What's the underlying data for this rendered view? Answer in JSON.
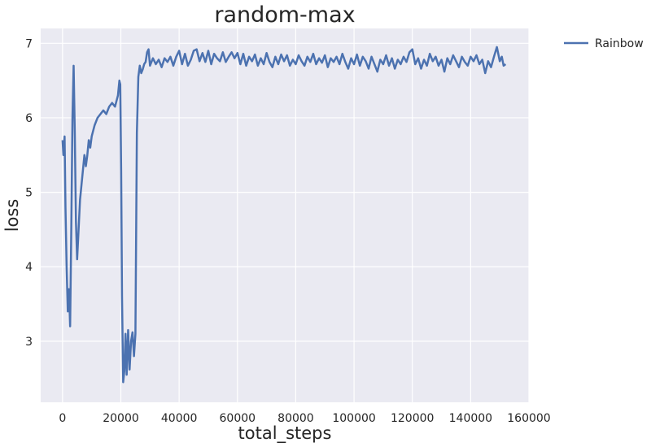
{
  "chart_data": {
    "type": "line",
    "title": "random-max",
    "xlabel": "total_steps",
    "ylabel": "loss",
    "xlim": [
      -7500,
      160000
    ],
    "ylim": [
      2.18,
      7.2
    ],
    "xticks": [
      0,
      20000,
      40000,
      60000,
      80000,
      100000,
      120000,
      140000,
      160000
    ],
    "yticks": [
      3,
      4,
      5,
      6,
      7
    ],
    "grid": true,
    "background": "#EAEAF2",
    "legend_position": "outside-top-right",
    "series": [
      {
        "name": "Rainbow",
        "color": "#4C72B0",
        "points": [
          [
            0,
            5.7
          ],
          [
            300,
            5.5
          ],
          [
            700,
            5.75
          ],
          [
            1000,
            4.8
          ],
          [
            1400,
            4.0
          ],
          [
            1800,
            3.4
          ],
          [
            2200,
            3.7
          ],
          [
            2600,
            3.2
          ],
          [
            3000,
            4.5
          ],
          [
            3400,
            6.0
          ],
          [
            3800,
            6.7
          ],
          [
            4200,
            5.8
          ],
          [
            4600,
            4.6
          ],
          [
            5000,
            4.1
          ],
          [
            5500,
            4.5
          ],
          [
            6000,
            4.9
          ],
          [
            6500,
            5.1
          ],
          [
            7000,
            5.3
          ],
          [
            7500,
            5.5
          ],
          [
            8000,
            5.35
          ],
          [
            8500,
            5.5
          ],
          [
            9000,
            5.7
          ],
          [
            9500,
            5.6
          ],
          [
            10000,
            5.75
          ],
          [
            11000,
            5.9
          ],
          [
            12000,
            6.0
          ],
          [
            13000,
            6.05
          ],
          [
            14000,
            6.1
          ],
          [
            15000,
            6.05
          ],
          [
            16000,
            6.15
          ],
          [
            17000,
            6.2
          ],
          [
            18000,
            6.15
          ],
          [
            19000,
            6.3
          ],
          [
            19500,
            6.5
          ],
          [
            19800,
            6.45
          ],
          [
            20100,
            5.3
          ],
          [
            20400,
            3.6
          ],
          [
            20800,
            2.45
          ],
          [
            21200,
            2.6
          ],
          [
            21600,
            3.1
          ],
          [
            22000,
            2.55
          ],
          [
            22500,
            3.15
          ],
          [
            23000,
            2.62
          ],
          [
            23500,
            3.0
          ],
          [
            24000,
            3.12
          ],
          [
            24500,
            2.8
          ],
          [
            25000,
            3.1
          ],
          [
            25500,
            5.8
          ],
          [
            26000,
            6.55
          ],
          [
            26500,
            6.7
          ],
          [
            27000,
            6.6
          ],
          [
            27500,
            6.65
          ],
          [
            28000,
            6.72
          ],
          [
            28500,
            6.75
          ],
          [
            29000,
            6.88
          ],
          [
            29500,
            6.92
          ],
          [
            30000,
            6.7
          ],
          [
            31000,
            6.8
          ],
          [
            32000,
            6.72
          ],
          [
            33000,
            6.78
          ],
          [
            34000,
            6.68
          ],
          [
            35000,
            6.8
          ],
          [
            36000,
            6.75
          ],
          [
            37000,
            6.82
          ],
          [
            38000,
            6.7
          ],
          [
            39000,
            6.82
          ],
          [
            40000,
            6.9
          ],
          [
            41000,
            6.72
          ],
          [
            42000,
            6.86
          ],
          [
            43000,
            6.7
          ],
          [
            44000,
            6.78
          ],
          [
            45000,
            6.9
          ],
          [
            46000,
            6.92
          ],
          [
            47000,
            6.76
          ],
          [
            48000,
            6.87
          ],
          [
            49000,
            6.75
          ],
          [
            50000,
            6.9
          ],
          [
            51000,
            6.72
          ],
          [
            52000,
            6.86
          ],
          [
            53000,
            6.8
          ],
          [
            54000,
            6.76
          ],
          [
            55000,
            6.88
          ],
          [
            56000,
            6.75
          ],
          [
            57000,
            6.82
          ],
          [
            58000,
            6.88
          ],
          [
            59000,
            6.8
          ],
          [
            60000,
            6.87
          ],
          [
            61000,
            6.72
          ],
          [
            62000,
            6.86
          ],
          [
            63000,
            6.7
          ],
          [
            64000,
            6.82
          ],
          [
            65000,
            6.76
          ],
          [
            66000,
            6.85
          ],
          [
            67000,
            6.7
          ],
          [
            68000,
            6.8
          ],
          [
            69000,
            6.72
          ],
          [
            70000,
            6.87
          ],
          [
            71000,
            6.75
          ],
          [
            72000,
            6.68
          ],
          [
            73000,
            6.82
          ],
          [
            74000,
            6.72
          ],
          [
            75000,
            6.85
          ],
          [
            76000,
            6.76
          ],
          [
            77000,
            6.84
          ],
          [
            78000,
            6.7
          ],
          [
            79000,
            6.78
          ],
          [
            80000,
            6.72
          ],
          [
            81000,
            6.84
          ],
          [
            82000,
            6.76
          ],
          [
            83000,
            6.7
          ],
          [
            84000,
            6.82
          ],
          [
            85000,
            6.75
          ],
          [
            86000,
            6.86
          ],
          [
            87000,
            6.72
          ],
          [
            88000,
            6.8
          ],
          [
            89000,
            6.74
          ],
          [
            90000,
            6.84
          ],
          [
            91000,
            6.68
          ],
          [
            92000,
            6.8
          ],
          [
            93000,
            6.75
          ],
          [
            94000,
            6.82
          ],
          [
            95000,
            6.72
          ],
          [
            96000,
            6.86
          ],
          [
            97000,
            6.75
          ],
          [
            98000,
            6.66
          ],
          [
            99000,
            6.8
          ],
          [
            100000,
            6.72
          ],
          [
            101000,
            6.85
          ],
          [
            102000,
            6.7
          ],
          [
            103000,
            6.82
          ],
          [
            104000,
            6.76
          ],
          [
            105000,
            6.66
          ],
          [
            106000,
            6.82
          ],
          [
            107000,
            6.72
          ],
          [
            108000,
            6.62
          ],
          [
            109000,
            6.78
          ],
          [
            110000,
            6.72
          ],
          [
            111000,
            6.84
          ],
          [
            112000,
            6.7
          ],
          [
            113000,
            6.8
          ],
          [
            114000,
            6.66
          ],
          [
            115000,
            6.78
          ],
          [
            116000,
            6.72
          ],
          [
            117000,
            6.82
          ],
          [
            118000,
            6.75
          ],
          [
            119000,
            6.88
          ],
          [
            120000,
            6.92
          ],
          [
            121000,
            6.72
          ],
          [
            122000,
            6.8
          ],
          [
            123000,
            6.66
          ],
          [
            124000,
            6.78
          ],
          [
            125000,
            6.7
          ],
          [
            126000,
            6.86
          ],
          [
            127000,
            6.76
          ],
          [
            128000,
            6.82
          ],
          [
            129000,
            6.7
          ],
          [
            130000,
            6.78
          ],
          [
            131000,
            6.62
          ],
          [
            132000,
            6.8
          ],
          [
            133000,
            6.72
          ],
          [
            134000,
            6.84
          ],
          [
            135000,
            6.76
          ],
          [
            136000,
            6.68
          ],
          [
            137000,
            6.82
          ],
          [
            138000,
            6.75
          ],
          [
            139000,
            6.7
          ],
          [
            140000,
            6.82
          ],
          [
            141000,
            6.76
          ],
          [
            142000,
            6.84
          ],
          [
            143000,
            6.72
          ],
          [
            144000,
            6.78
          ],
          [
            145000,
            6.6
          ],
          [
            146000,
            6.76
          ],
          [
            147000,
            6.68
          ],
          [
            148000,
            6.82
          ],
          [
            149000,
            6.95
          ],
          [
            150000,
            6.76
          ],
          [
            150700,
            6.82
          ],
          [
            151300,
            6.7
          ],
          [
            152000,
            6.72
          ]
        ]
      }
    ]
  }
}
